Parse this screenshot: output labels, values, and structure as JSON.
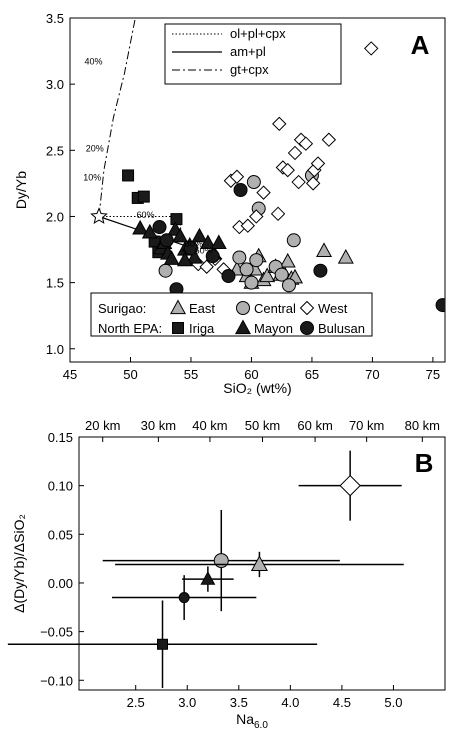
{
  "chart_data": [
    {
      "panel": "A",
      "type": "scatter",
      "xlabel": "SiO₂ (wt%)",
      "ylabel": "Dy/Yb",
      "xlim": [
        45,
        76
      ],
      "ylim": [
        0.9,
        3.5
      ],
      "xticks": [
        "45",
        "50",
        "55",
        "60",
        "65",
        "70",
        "75"
      ],
      "yticks": [
        "1.0",
        "1.5",
        "2.0",
        "2.5",
        "3.0",
        "3.5"
      ],
      "model_legend": [
        {
          "label": "ol+pl+cpx",
          "style": "dotted"
        },
        {
          "label": "am+pl",
          "style": "solid"
        },
        {
          "label": "gt+cpx",
          "style": "dash-dot"
        }
      ],
      "model_lines": [
        {
          "style": "dotted",
          "points": [
            [
              47.4,
              2.0
            ],
            [
              54.0,
              2.0
            ],
            [
              54.3,
              1.82
            ]
          ]
        },
        {
          "style": "solid",
          "points": [
            [
              47.4,
              2.0
            ],
            [
              54.5,
              1.78
            ]
          ]
        },
        {
          "style": "dash-dot",
          "points": [
            [
              47.4,
              2.0
            ],
            [
              47.8,
              2.35
            ],
            [
              48.6,
              2.75
            ],
            [
              49.5,
              3.08
            ],
            [
              50.4,
              3.5
            ]
          ]
        }
      ],
      "annotations": [
        {
          "text": "40%",
          "x": 46.2,
          "y": 3.15
        },
        {
          "text": "20%",
          "x": 46.3,
          "y": 2.49
        },
        {
          "text": "10%",
          "x": 46.1,
          "y": 2.27
        },
        {
          "text": "60%",
          "x": 50.5,
          "y": 1.99
        },
        {
          "text": "60%",
          "x": 54.5,
          "y": 1.77
        },
        {
          "text": "60%",
          "x": 55.3,
          "y": 1.72
        }
      ],
      "start_point": {
        "x": 47.4,
        "y": 2.0,
        "marker": "star"
      },
      "legend_rows": [
        {
          "label": "Surigao:",
          "items": [
            "East",
            "Central",
            "West"
          ]
        },
        {
          "label": "North EPA:",
          "items": [
            "Iriga",
            "Mayon",
            "Bulusan"
          ]
        }
      ],
      "series": [
        {
          "name": "East",
          "marker": "triangle",
          "fill": "#b0b0b0",
          "points": [
            [
              58.8,
              1.6
            ],
            [
              59.6,
              1.55
            ],
            [
              60.0,
              1.5
            ],
            [
              60.3,
              1.6
            ],
            [
              60.6,
              1.7
            ],
            [
              61.0,
              1.52
            ],
            [
              61.3,
              1.55
            ],
            [
              62.0,
              1.62
            ],
            [
              62.4,
              1.56
            ],
            [
              62.7,
              1.57
            ],
            [
              63.0,
              1.66
            ],
            [
              63.3,
              1.53
            ],
            [
              63.6,
              1.54
            ],
            [
              66.0,
              1.74
            ],
            [
              67.8,
              1.69
            ]
          ]
        },
        {
          "name": "Central",
          "marker": "circle",
          "fill": "#b0b0b0",
          "points": [
            [
              52.9,
              1.59
            ],
            [
              59.0,
              1.69
            ],
            [
              59.6,
              1.6
            ],
            [
              60.0,
              1.5
            ],
            [
              60.4,
              1.67
            ],
            [
              60.2,
              2.26
            ],
            [
              60.6,
              2.06
            ],
            [
              62.0,
              1.62
            ],
            [
              62.5,
              1.56
            ],
            [
              63.1,
              1.48
            ],
            [
              63.5,
              1.82
            ],
            [
              65.0,
              2.31
            ]
          ]
        },
        {
          "name": "West",
          "marker": "diamond",
          "fill": "#ffffff",
          "points": [
            [
              55.0,
              1.7
            ],
            [
              55.6,
              1.64
            ],
            [
              56.3,
              1.62
            ],
            [
              57.0,
              1.68
            ],
            [
              57.7,
              1.6
            ],
            [
              58.3,
              2.27
            ],
            [
              58.8,
              2.3
            ],
            [
              59.0,
              1.92
            ],
            [
              59.7,
              1.93
            ],
            [
              60.4,
              2.0
            ],
            [
              61.0,
              2.18
            ],
            [
              62.2,
              2.02
            ],
            [
              62.3,
              2.7
            ],
            [
              62.6,
              2.37
            ],
            [
              63.0,
              2.35
            ],
            [
              63.6,
              2.48
            ],
            [
              63.9,
              2.26
            ],
            [
              64.1,
              2.58
            ],
            [
              64.5,
              2.55
            ],
            [
              65.1,
              2.25
            ],
            [
              65.2,
              2.35
            ],
            [
              65.5,
              2.4
            ],
            [
              66.4,
              2.58
            ],
            [
              69.9,
              3.27
            ]
          ]
        },
        {
          "name": "Iriga",
          "marker": "square",
          "fill": "#1a1a1a",
          "points": [
            [
              49.8,
              2.31
            ],
            [
              50.6,
              2.14
            ],
            [
              51.1,
              2.15
            ],
            [
              52.0,
              1.81
            ],
            [
              52.3,
              1.73
            ],
            [
              53.8,
              1.98
            ]
          ]
        },
        {
          "name": "Mayon",
          "marker": "triangle",
          "fill": "#1a1a1a",
          "points": [
            [
              50.8,
              1.91
            ],
            [
              51.6,
              1.88
            ],
            [
              52.5,
              1.76
            ],
            [
              52.8,
              1.8
            ],
            [
              53.1,
              1.72
            ],
            [
              53.4,
              1.68
            ],
            [
              53.7,
              1.9
            ],
            [
              54.1,
              1.85
            ],
            [
              54.5,
              1.75
            ],
            [
              54.9,
              1.78
            ],
            [
              55.3,
              1.69
            ],
            [
              55.7,
              1.85
            ],
            [
              56.4,
              1.8
            ],
            [
              56.9,
              1.72
            ],
            [
              57.3,
              1.8
            ],
            [
              54.5,
              1.67
            ]
          ]
        },
        {
          "name": "Bulusan",
          "marker": "circle",
          "fill": "#1a1a1a",
          "points": [
            [
              52.4,
              1.92
            ],
            [
              53.0,
              1.82
            ],
            [
              53.8,
              1.45
            ],
            [
              55.0,
              1.76
            ],
            [
              56.8,
              1.7
            ],
            [
              58.1,
              1.55
            ],
            [
              59.1,
              2.2
            ],
            [
              65.7,
              1.59
            ],
            [
              75.8,
              1.33
            ]
          ]
        }
      ]
    },
    {
      "panel": "B",
      "type": "scatter",
      "xlabel": "Na",
      "xlabel_sub": "6.0",
      "ylabel": "Δ(Dy/Yb)/ΔSiO₂",
      "xlim": [
        1.95,
        5.5
      ],
      "ylim": [
        -0.11,
        0.15
      ],
      "xticks": [
        "2.5",
        "3.0",
        "3.5",
        "4.0",
        "4.5",
        "5.0"
      ],
      "yticks": [
        "−0.10",
        "−0.05",
        "0.00",
        "0.05",
        "0.10",
        "0.15"
      ],
      "top_axis_ticks": [
        {
          "label": "20 km",
          "x": 2.18
        },
        {
          "label": "30 km",
          "x": 2.72
        },
        {
          "label": "40 km",
          "x": 3.22
        },
        {
          "label": "50 km",
          "x": 3.73
        },
        {
          "label": "60 km",
          "x": 4.24
        },
        {
          "label": "70 km",
          "x": 4.74
        },
        {
          "label": "80 km",
          "x": 5.28
        }
      ],
      "points": [
        {
          "name": "West",
          "marker": "diamond",
          "fill": "#ffffff",
          "size": 10,
          "x": 4.58,
          "y": 0.1,
          "xerr": 0.5,
          "yerr": 0.036
        },
        {
          "name": "Central",
          "marker": "circle",
          "fill": "#b0b0b0",
          "size": 7,
          "x": 3.33,
          "y": 0.023,
          "xerr": 1.15,
          "yerr": 0.052
        },
        {
          "name": "East",
          "marker": "triangle",
          "fill": "#b0b0b0",
          "size": 7,
          "x": 3.7,
          "y": 0.019,
          "xerr": 1.4,
          "yerr": 0.013
        },
        {
          "name": "Mayon",
          "marker": "triangle",
          "fill": "#1a1a1a",
          "size": 6,
          "x": 3.2,
          "y": 0.004,
          "xerr": 0.25,
          "yerr": 0.013
        },
        {
          "name": "Bulusan",
          "marker": "circle",
          "fill": "#1a1a1a",
          "size": 5,
          "x": 2.97,
          "y": -0.015,
          "xerr": 0.7,
          "yerr": 0.023
        },
        {
          "name": "Iriga",
          "marker": "square",
          "fill": "#1a1a1a",
          "size": 5,
          "x": 2.76,
          "y": -0.063,
          "xerr": 1.5,
          "yerr": 0.045
        }
      ]
    }
  ]
}
